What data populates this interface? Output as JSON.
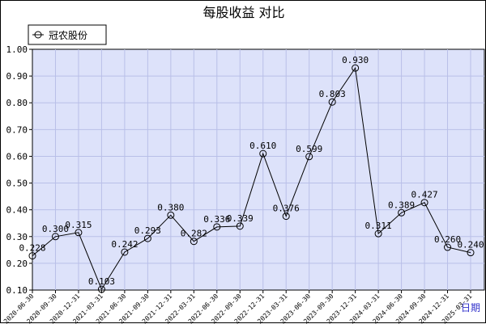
{
  "chart_data": {
    "type": "line",
    "title": "每股收益  对比",
    "xlabel": "日期",
    "ylabel": "",
    "ylim": [
      0.1,
      1.0
    ],
    "yticks": [
      "0.10",
      "0.20",
      "0.30",
      "0.40",
      "0.50",
      "0.60",
      "0.70",
      "0.80",
      "0.90",
      "1.00"
    ],
    "grid": true,
    "legend_position": "top-left",
    "categories": [
      "2020-06-30",
      "2020-09-30",
      "2020-12-31",
      "2021-03-31",
      "2021-06-30",
      "2021-09-30",
      "2021-12-31",
      "2022-03-31",
      "2022-06-30",
      "2022-09-30",
      "2022-12-31",
      "2023-03-31",
      "2023-06-30",
      "2023-09-30",
      "2023-12-31",
      "2024-03-31",
      "2024-06-30",
      "2024-09-30",
      "2024-12-31",
      "2025-03-31"
    ],
    "series": [
      {
        "name": "冠农股份",
        "values": [
          0.228,
          0.3,
          0.315,
          0.103,
          0.242,
          0.293,
          0.38,
          0.282,
          0.336,
          0.339,
          0.61,
          0.376,
          0.599,
          0.803,
          0.93,
          0.311,
          0.389,
          0.427,
          0.26,
          0.24
        ],
        "labels": [
          "0.228",
          "0.300",
          "0.315",
          "0.103",
          "0.242",
          "0.293",
          "0.380",
          "0.282",
          "0.336",
          "0.339",
          "0.610",
          "0.376",
          "0.599",
          "0.803",
          "0.930",
          "0.311",
          "0.389",
          "0.427",
          "0.260",
          "0.240"
        ]
      }
    ],
    "colors": {
      "plot_bg": "#dde2fa",
      "grid": "#b9bfe8",
      "line": "#000000"
    }
  }
}
